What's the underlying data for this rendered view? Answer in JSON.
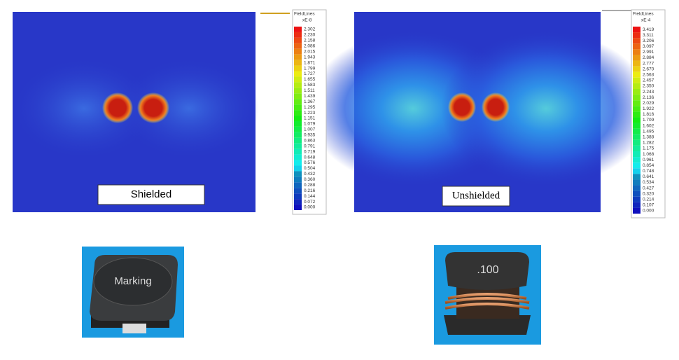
{
  "panels": [
    {
      "caption": "Shielded",
      "legend_title": "FieldLines",
      "legend_unit": "xE-8",
      "part_marking": "Marking",
      "legend_labels": [
        "2.302",
        "2.230",
        "2.158",
        "2.086",
        "2.015",
        "1.943",
        "1.871",
        "1.799",
        "1.727",
        "1.655",
        "1.583",
        "1.511",
        "1.439",
        "1.367",
        "1.295",
        "1.223",
        "1.151",
        "1.079",
        "1.007",
        "0.935",
        "0.863",
        "0.791",
        "0.719",
        "0.648",
        "0.576",
        "0.504",
        "0.432",
        "0.360",
        "0.288",
        "0.216",
        "0.144",
        "0.072",
        "0.000"
      ]
    },
    {
      "caption": "Unshielded",
      "legend_title": "FieldLines",
      "legend_unit": "xE-4",
      "part_marking": ".100",
      "legend_labels": [
        "3.419",
        "3.311",
        "3.206",
        "3.097",
        "2.991",
        "2.884",
        "2.777",
        "2.670",
        "2.563",
        "2.457",
        "2.350",
        "2.243",
        "2.136",
        "2.029",
        "1.922",
        "1.816",
        "1.709",
        "1.602",
        "1.495",
        "1.388",
        "1.282",
        "1.175",
        "1.068",
        "0.961",
        "0.854",
        "0.748",
        "0.641",
        "0.534",
        "0.427",
        "0.320",
        "0.214",
        "0.107",
        "0.000"
      ]
    }
  ]
}
